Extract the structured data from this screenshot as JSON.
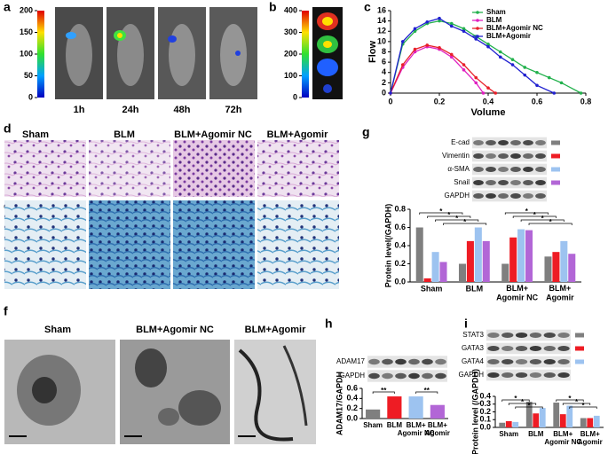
{
  "panel_labels": [
    "a",
    "b",
    "c",
    "d",
    "e",
    "f",
    "g",
    "h",
    "i"
  ],
  "imaging": {
    "colorbar_a": {
      "lim": [
        0,
        200
      ],
      "ticks": [
        0,
        50,
        100,
        150,
        200
      ]
    },
    "timepoints": [
      "1h",
      "24h",
      "48h",
      "72h"
    ],
    "colorbar_b": {
      "lim": [
        0,
        400
      ],
      "ticks": [
        0,
        100,
        200,
        300,
        400
      ]
    }
  },
  "histology": {
    "groups": [
      "Sham",
      "BLM",
      "BLM+Agomir NC",
      "BLM+Agomir"
    ]
  },
  "tem": {
    "groups": [
      "Sham",
      "BLM+Agomir NC",
      "BLM+Agomir"
    ]
  },
  "chart_data": [
    {
      "type": "line",
      "xlabel": "Volume",
      "ylabel": "Flow",
      "xlim": [
        0,
        0.8
      ],
      "xticks": [
        0,
        0.2,
        0.4,
        0.6,
        0.8
      ],
      "ylim": [
        0,
        16
      ],
      "yticks": [
        0,
        2,
        4,
        6,
        8,
        10,
        12,
        14,
        16
      ],
      "legend": "upper right",
      "series": [
        {
          "name": "Sham",
          "color": "#22b14c",
          "x": [
            0,
            0.05,
            0.1,
            0.15,
            0.2,
            0.25,
            0.3,
            0.35,
            0.4,
            0.45,
            0.5,
            0.55,
            0.6,
            0.65,
            0.7,
            0.78
          ],
          "values": [
            0,
            9.5,
            12,
            13.5,
            14,
            13.5,
            12.5,
            11,
            9.5,
            8,
            6.5,
            5,
            4,
            3,
            2,
            0
          ]
        },
        {
          "name": "BLM",
          "color": "#e020c0",
          "x": [
            0,
            0.05,
            0.1,
            0.15,
            0.2,
            0.25,
            0.3,
            0.35,
            0.38
          ],
          "values": [
            0,
            5,
            8,
            9,
            8.5,
            7,
            4.5,
            2,
            0
          ]
        },
        {
          "name": "BLM+Agomir NC",
          "color": "#e8202a",
          "x": [
            0,
            0.05,
            0.1,
            0.15,
            0.2,
            0.25,
            0.3,
            0.35,
            0.4,
            0.43
          ],
          "values": [
            0,
            5.5,
            8.5,
            9.3,
            8.8,
            7.5,
            5.5,
            3,
            1,
            0
          ]
        },
        {
          "name": "BLM+Agomir",
          "color": "#2020d0",
          "x": [
            0,
            0.05,
            0.1,
            0.15,
            0.2,
            0.25,
            0.3,
            0.35,
            0.4,
            0.45,
            0.5,
            0.55,
            0.6,
            0.67
          ],
          "values": [
            0,
            10,
            12.5,
            13.8,
            14.5,
            13,
            12,
            10.5,
            9,
            7,
            5.5,
            3.5,
            1.5,
            0
          ]
        }
      ]
    },
    {
      "type": "bar",
      "ylabel": "Protein level(/GAPDH)",
      "categories": [
        "Sham",
        "BLM",
        "BLM+ Agomir NC",
        "BLM+ Agomir"
      ],
      "ylim": [
        0,
        0.8
      ],
      "yticks": [
        {
          "value": 0,
          "label": "0.0"
        },
        0.2,
        0.4,
        0.6,
        0.8
      ],
      "loading_control": "GAPDH",
      "series": [
        {
          "name": "E-cad",
          "color": "#7f7f7f",
          "values": [
            0.6,
            0.2,
            0.2,
            0.28
          ]
        },
        {
          "name": "Vimentin",
          "color": "#ee1c24",
          "values": [
            0.04,
            0.45,
            0.49,
            0.33
          ]
        },
        {
          "name": "α-SMA",
          "color": "#9dc3f0",
          "values": [
            0.33,
            0.6,
            0.58,
            0.45
          ]
        },
        {
          "name": "Snail",
          "color": "#b266d6",
          "values": [
            0.22,
            0.45,
            0.57,
            0.31
          ]
        }
      ],
      "annotations": [
        {
          "text": "*",
          "from": 0,
          "to": 1,
          "series": 0
        },
        {
          "text": "*",
          "from": 0,
          "to": 1,
          "series": 1
        },
        {
          "text": "*",
          "from": 0,
          "to": 1,
          "series": 2
        },
        {
          "text": "*",
          "from": 0,
          "to": 1,
          "series": 3
        },
        {
          "text": "*",
          "from": 2,
          "to": 3,
          "series": 0
        },
        {
          "text": "*",
          "from": 2,
          "to": 3,
          "series": 1
        },
        {
          "text": "*",
          "from": 2,
          "to": 3,
          "series": 2
        },
        {
          "text": "*",
          "from": 2,
          "to": 3,
          "series": 3
        }
      ]
    },
    {
      "type": "bar",
      "ylabel": "ADAM17/GAPDH",
      "categories": [
        "Sham",
        "BLM",
        "BLM+ Agomir NC",
        "BLM+ Agomir"
      ],
      "values": [
        0.18,
        0.44,
        0.44,
        0.27
      ],
      "colors": [
        "#7f7f7f",
        "#ee1c24",
        "#9dc3f0",
        "#b266d6"
      ],
      "ylim": [
        0,
        0.6
      ],
      "yticks": [
        {
          "value": 0,
          "label": "0.0"
        },
        0.2,
        0.4,
        0.6
      ],
      "blot_labels": [
        "ADAM17",
        "GAPDH"
      ],
      "annotations": [
        {
          "text": "**",
          "from": 0,
          "to": 1
        },
        {
          "text": "**",
          "from": 2,
          "to": 3
        }
      ]
    },
    {
      "type": "bar",
      "ylabel": "Protein level (/GAPDH)",
      "categories": [
        "Sham",
        "BLM",
        "BLM+ Agomir NC",
        "BLM+ Agomir"
      ],
      "ylim": [
        0,
        0.4
      ],
      "yticks": [
        {
          "value": 0,
          "label": "0.0"
        },
        0.1,
        0.2,
        0.3,
        0.4
      ],
      "loading_control": "GAPDH",
      "series": [
        {
          "name": "STAT3",
          "color": "#7f7f7f",
          "values": [
            0.06,
            0.33,
            0.32,
            0.12
          ]
        },
        {
          "name": "GATA3",
          "color": "#ee1c24",
          "values": [
            0.08,
            0.18,
            0.17,
            0.12
          ]
        },
        {
          "name": "GATA4",
          "color": "#9dc3f0",
          "values": [
            0.07,
            0.25,
            0.28,
            0.15
          ]
        }
      ],
      "annotations": [
        {
          "text": "*",
          "from": 0,
          "to": 1,
          "series": 0
        },
        {
          "text": "*",
          "from": 0,
          "to": 1,
          "series": 1
        },
        {
          "text": "*",
          "from": 0,
          "to": 1,
          "series": 2
        },
        {
          "text": "*",
          "from": 2,
          "to": 3,
          "series": 0
        },
        {
          "text": "*",
          "from": 2,
          "to": 3,
          "series": 1
        },
        {
          "text": "*",
          "from": 2,
          "to": 3,
          "series": 2
        }
      ]
    }
  ]
}
